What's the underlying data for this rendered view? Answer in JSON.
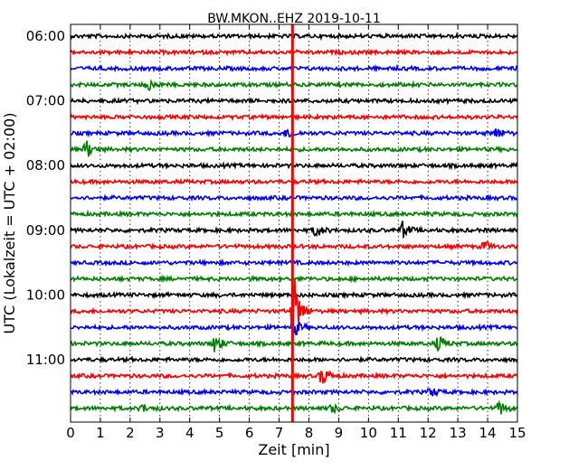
{
  "chart_data": {
    "type": "line",
    "title": "BW.MKON..EHZ 2019-10-11",
    "xlabel": "Zeit  [min]",
    "ylabel": "UTC (Lokalzeit = UTC + 02:00)",
    "xlim": [
      0,
      15
    ],
    "x_ticks": [
      "0",
      "1",
      "2",
      "3",
      "4",
      "5",
      "6",
      "7",
      "8",
      "9",
      "10",
      "11",
      "12",
      "13",
      "14",
      "15"
    ],
    "y_ticks": [
      "06:00",
      "07:00",
      "08:00",
      "09:00",
      "10:00",
      "11:00"
    ],
    "grid": "x-dotted",
    "trace_colors": [
      "#000000",
      "#ff0000",
      "#0000ff",
      "#008000"
    ],
    "traces_start": "06:00",
    "trace_interval_min": 15,
    "trace_count": 24,
    "marker_line": {
      "x": 7.45,
      "color": "#ff0000"
    },
    "events": [
      {
        "trace": 3,
        "x": 2.6,
        "amp": 0.35
      },
      {
        "trace": 6,
        "x": 7.3,
        "amp": 0.3
      },
      {
        "trace": 6,
        "x": 14.3,
        "amp": 0.35
      },
      {
        "trace": 7,
        "x": 0.55,
        "amp": 0.55
      },
      {
        "trace": 12,
        "x": 8.25,
        "amp": 0.4
      },
      {
        "trace": 12,
        "x": 11.15,
        "amp": 0.5
      },
      {
        "trace": 13,
        "x": 13.9,
        "amp": 0.3
      },
      {
        "trace": 17,
        "x": 7.5,
        "amp": 2.2
      },
      {
        "trace": 18,
        "x": 7.5,
        "amp": 0.6
      },
      {
        "trace": 19,
        "x": 4.85,
        "amp": 0.55
      },
      {
        "trace": 19,
        "x": 12.35,
        "amp": 0.5
      },
      {
        "trace": 21,
        "x": 8.45,
        "amp": 0.6
      },
      {
        "trace": 22,
        "x": 12.1,
        "amp": 0.3
      },
      {
        "trace": 23,
        "x": 2.4,
        "amp": 0.25
      },
      {
        "trace": 23,
        "x": 8.8,
        "amp": 0.25
      },
      {
        "trace": 23,
        "x": 14.4,
        "amp": 0.45
      }
    ]
  }
}
